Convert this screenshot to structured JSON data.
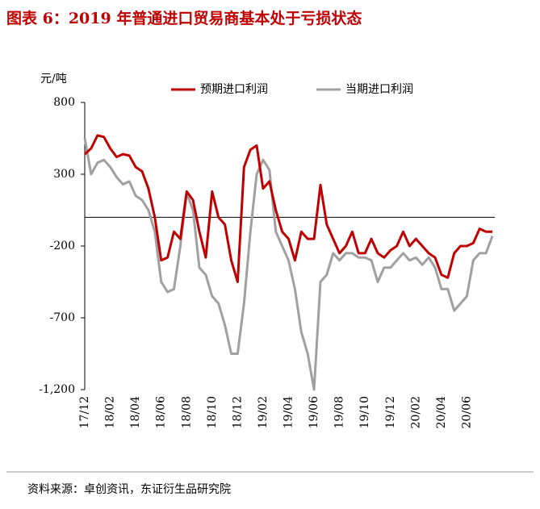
{
  "chart_data": {
    "type": "line",
    "title": "图表 6：2019 年普通进口贸易商基本处于亏损状态",
    "y_label": "元/吨",
    "source": "资料来源：卓创资讯，东证衍生品研究院",
    "categories": [
      "17/12",
      null,
      null,
      null,
      "18/02",
      null,
      null,
      null,
      "18/04",
      null,
      null,
      null,
      "18/06",
      null,
      null,
      null,
      "18/08",
      null,
      null,
      null,
      "18/10",
      null,
      null,
      null,
      "18/12",
      null,
      null,
      null,
      "19/02",
      null,
      null,
      null,
      "19/04",
      null,
      null,
      null,
      "19/06",
      null,
      null,
      null,
      "19/08",
      null,
      null,
      null,
      "19/10",
      null,
      null,
      null,
      "19/12",
      null,
      null,
      null,
      "20/02",
      null,
      null,
      null,
      "20/04",
      null,
      null,
      null,
      "20/06",
      null,
      null,
      null,
      null
    ],
    "series": [
      {
        "name": "预期进口利润",
        "color": "#c00000",
        "values": [
          440,
          480,
          570,
          560,
          480,
          420,
          440,
          430,
          350,
          320,
          200,
          0,
          -300,
          -280,
          -100,
          -150,
          180,
          120,
          -100,
          -280,
          180,
          0,
          -50,
          -300,
          -450,
          350,
          470,
          500,
          200,
          250,
          50,
          -100,
          -150,
          -300,
          -100,
          -150,
          -150,
          225,
          -50,
          -150,
          -250,
          -200,
          -100,
          -250,
          -250,
          -150,
          -250,
          -280,
          -230,
          -200,
          -100,
          -200,
          -150,
          -200,
          -250,
          -280,
          -400,
          -420,
          -250,
          -200,
          -200,
          -180,
          -80,
          -100,
          -100
        ]
      },
      {
        "name": "当期进口利润",
        "color": "#a0a0a0",
        "values": [
          550,
          300,
          380,
          400,
          350,
          280,
          230,
          250,
          150,
          120,
          50,
          -100,
          -450,
          -520,
          -500,
          -200,
          170,
          50,
          -350,
          -400,
          -550,
          -600,
          -750,
          -950,
          -950,
          -600,
          -100,
          300,
          400,
          330,
          -100,
          -200,
          -300,
          -500,
          -800,
          -950,
          -1200,
          -450,
          -400,
          -250,
          -300,
          -250,
          -250,
          -280,
          -280,
          -300,
          -450,
          -350,
          -350,
          -300,
          -250,
          -300,
          -280,
          -330,
          -280,
          -350,
          -500,
          -500,
          -650,
          -600,
          -550,
          -300,
          -250,
          -250,
          -130
        ]
      }
    ],
    "ylim": [
      -1200,
      800
    ],
    "yticks": [
      800,
      300,
      -200,
      -700,
      {
        "value": -1200,
        "label": "-1,200"
      }
    ],
    "legend": "top"
  }
}
